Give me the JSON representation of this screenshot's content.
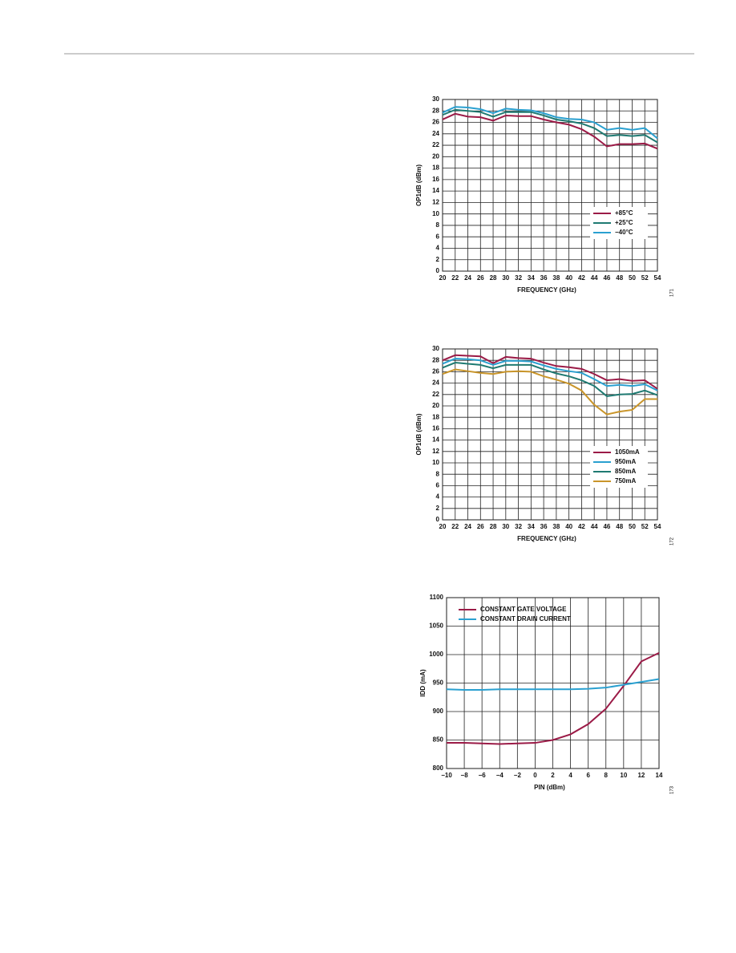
{
  "chart_data": [
    {
      "type": "line",
      "y_label": "OP1dB (dBm)",
      "x_label": "FREQUENCY (GHz)",
      "figure_number": "171",
      "x": [
        20,
        22,
        24,
        26,
        28,
        30,
        32,
        34,
        36,
        38,
        40,
        42,
        44,
        46,
        48,
        50,
        52,
        54
      ],
      "series": [
        {
          "name": "+85°C",
          "color": "#9b1b47",
          "values": [
            26.5,
            27.5,
            27,
            26.9,
            26.3,
            27.2,
            27.1,
            27.1,
            26.5,
            26,
            25.6,
            24.8,
            23.5,
            21.8,
            22.2,
            22.2,
            22.3,
            21.4
          ]
        },
        {
          "name": "+25°C",
          "color": "#1f7a72",
          "values": [
            27.3,
            28.2,
            28,
            27.8,
            27,
            27.8,
            27.8,
            27.8,
            27.2,
            26.5,
            26.2,
            25.8,
            25,
            23.6,
            23.8,
            23.6,
            23.8,
            22.5
          ]
        },
        {
          "name": "−40°C",
          "color": "#2aa0d0",
          "values": [
            27.7,
            28.7,
            28.6,
            28.3,
            27.6,
            28.4,
            28.2,
            28.1,
            27.6,
            26.9,
            26.6,
            26.5,
            26,
            24.7,
            25,
            24.7,
            25,
            23.2
          ]
        }
      ],
      "xlim": [
        20,
        54
      ],
      "xticks": [
        20,
        22,
        24,
        26,
        28,
        30,
        32,
        34,
        36,
        38,
        40,
        42,
        44,
        46,
        48,
        50,
        52,
        54
      ],
      "ylim": [
        0,
        30
      ],
      "yticks": [
        0,
        2,
        4,
        6,
        8,
        10,
        12,
        14,
        16,
        18,
        20,
        22,
        24,
        26,
        28,
        30
      ],
      "grid": true,
      "legend": "lower right"
    },
    {
      "type": "line",
      "y_label": "OP1dB (dBm)",
      "x_label": "FREQUENCY (GHz)",
      "figure_number": "172",
      "x": [
        20,
        22,
        24,
        26,
        28,
        30,
        32,
        34,
        36,
        38,
        40,
        42,
        44,
        46,
        48,
        50,
        52,
        54
      ],
      "series": [
        {
          "name": "1050mA",
          "color": "#9b1b47",
          "values": [
            28,
            28.9,
            28.8,
            28.7,
            27.5,
            28.6,
            28.4,
            28.3,
            27.6,
            27,
            26.8,
            26.5,
            25.6,
            24.5,
            24.7,
            24.4,
            24.5,
            23
          ]
        },
        {
          "name": "950mA",
          "color": "#2aa0d0",
          "values": [
            27.4,
            28.3,
            28.2,
            28,
            27.2,
            27.9,
            27.9,
            27.8,
            27.1,
            26.5,
            26.1,
            25.8,
            24.7,
            23.5,
            23.7,
            23.5,
            23.8,
            22.7
          ]
        },
        {
          "name": "850mA",
          "color": "#1f7a72",
          "values": [
            26.7,
            27.6,
            27.4,
            27.2,
            26.6,
            27.2,
            27.2,
            27.2,
            26.4,
            25.7,
            25.2,
            24.5,
            23.5,
            21.7,
            22,
            22.1,
            22.7,
            21.9
          ]
        },
        {
          "name": "750mA",
          "color": "#c9952a",
          "values": [
            25.6,
            26.4,
            26.1,
            25.8,
            25.6,
            26,
            26.1,
            26,
            25.2,
            24.6,
            23.9,
            22.7,
            20.2,
            18.5,
            19,
            19.3,
            21.2,
            21.2
          ]
        }
      ],
      "xlim": [
        20,
        54
      ],
      "xticks": [
        20,
        22,
        24,
        26,
        28,
        30,
        32,
        34,
        36,
        38,
        40,
        42,
        44,
        46,
        48,
        50,
        52,
        54
      ],
      "ylim": [
        0,
        30
      ],
      "yticks": [
        0,
        2,
        4,
        6,
        8,
        10,
        12,
        14,
        16,
        18,
        20,
        22,
        24,
        26,
        28,
        30
      ],
      "grid": true,
      "legend": "lower right"
    },
    {
      "type": "line",
      "y_label": "IDD (mA)",
      "x_label": "PIN (dBm)",
      "figure_number": "173",
      "x": [
        -10,
        -8,
        -6,
        -4,
        -2,
        0,
        2,
        4,
        6,
        8,
        10,
        12,
        14
      ],
      "series": [
        {
          "name": "CONSTANT GATE VOLTAGE",
          "color": "#9b1b47",
          "values": [
            845,
            845,
            844,
            843,
            844,
            845,
            850,
            860,
            878,
            905,
            945,
            988,
            1003
          ]
        },
        {
          "name": "CONSTANT DRAIN CURRENT",
          "color": "#2aa0d0",
          "values": [
            939,
            938,
            938,
            939,
            939,
            939,
            939,
            939,
            940,
            942,
            947,
            952,
            957
          ]
        }
      ],
      "xlim": [
        -10,
        14
      ],
      "xticks": [
        {
          "value": -10,
          "label": "−10"
        },
        {
          "value": -8,
          "label": "−8"
        },
        {
          "value": -6,
          "label": "−6"
        },
        {
          "value": -4,
          "label": "−4"
        },
        {
          "value": -2,
          "label": "−2"
        },
        0,
        2,
        4,
        6,
        8,
        10,
        12,
        14
      ],
      "ylim": [
        800,
        1100
      ],
      "yticks": [
        800,
        850,
        900,
        950,
        1000,
        1050,
        1100
      ],
      "grid": true,
      "legend": "upper left"
    }
  ]
}
